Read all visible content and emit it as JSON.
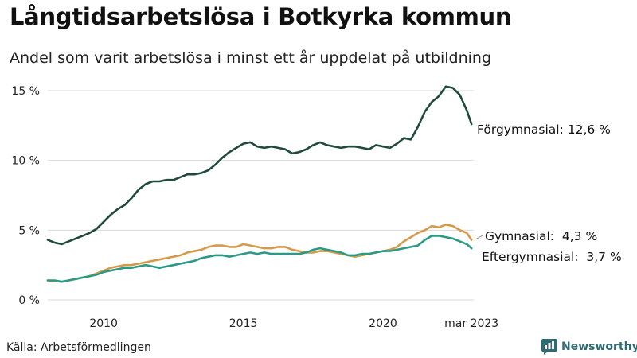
{
  "title": "Långtidsarbetslösa i Botkyrka kommun",
  "subtitle": "Andel som varit arbetslösa i minst ett år uppdelat på utbildning",
  "source": "Källa: Arbetsförmedlingen",
  "brand": "Newsworthy",
  "colors": {
    "forgymnasial": "#1f4a3d",
    "gymnasial": "#d49a4a",
    "eftergymnasial": "#2a9a86",
    "brand": "#2f6b73"
  },
  "chart_data": {
    "type": "line",
    "title": "Långtidsarbetslösa i Botkyrka kommun",
    "subtitle": "Andel som varit arbetslösa i minst ett år uppdelat på utbildning",
    "xlabel": "",
    "ylabel": "",
    "xlim": [
      2008.0,
      2023.25
    ],
    "ylim": [
      0,
      15.8
    ],
    "yticks": [
      0,
      5,
      10,
      15
    ],
    "ytick_labels": [
      "0 %",
      "5 %",
      "10 %",
      "15 %"
    ],
    "xticks": [
      2010,
      2015,
      2020,
      2023.17
    ],
    "xtick_labels": [
      "2010",
      "2015",
      "2020",
      "mar 2023"
    ],
    "grid": "horizontal",
    "legend": "none (direct labels at line ends)",
    "series": [
      {
        "name": "Förgymnasial",
        "end_label": "Förgymnasial: 12,6 %",
        "points": [
          [
            2008.0,
            4.3
          ],
          [
            2008.25,
            4.1
          ],
          [
            2008.5,
            4.0
          ],
          [
            2008.75,
            4.2
          ],
          [
            2009.0,
            4.4
          ],
          [
            2009.25,
            4.6
          ],
          [
            2009.5,
            4.8
          ],
          [
            2009.75,
            5.1
          ],
          [
            2010.0,
            5.6
          ],
          [
            2010.25,
            6.1
          ],
          [
            2010.5,
            6.5
          ],
          [
            2010.75,
            6.8
          ],
          [
            2011.0,
            7.3
          ],
          [
            2011.25,
            7.9
          ],
          [
            2011.5,
            8.3
          ],
          [
            2011.75,
            8.5
          ],
          [
            2012.0,
            8.5
          ],
          [
            2012.25,
            8.6
          ],
          [
            2012.5,
            8.6
          ],
          [
            2012.75,
            8.8
          ],
          [
            2013.0,
            9.0
          ],
          [
            2013.25,
            9.0
          ],
          [
            2013.5,
            9.1
          ],
          [
            2013.75,
            9.3
          ],
          [
            2014.0,
            9.7
          ],
          [
            2014.25,
            10.2
          ],
          [
            2014.5,
            10.6
          ],
          [
            2014.75,
            10.9
          ],
          [
            2015.0,
            11.2
          ],
          [
            2015.25,
            11.3
          ],
          [
            2015.5,
            11.0
          ],
          [
            2015.75,
            10.9
          ],
          [
            2016.0,
            11.0
          ],
          [
            2016.25,
            10.9
          ],
          [
            2016.5,
            10.8
          ],
          [
            2016.75,
            10.5
          ],
          [
            2017.0,
            10.6
          ],
          [
            2017.25,
            10.8
          ],
          [
            2017.5,
            11.1
          ],
          [
            2017.75,
            11.3
          ],
          [
            2018.0,
            11.1
          ],
          [
            2018.25,
            11.0
          ],
          [
            2018.5,
            10.9
          ],
          [
            2018.75,
            11.0
          ],
          [
            2019.0,
            11.0
          ],
          [
            2019.25,
            10.9
          ],
          [
            2019.5,
            10.8
          ],
          [
            2019.75,
            11.1
          ],
          [
            2020.0,
            11.0
          ],
          [
            2020.25,
            10.9
          ],
          [
            2020.5,
            11.2
          ],
          [
            2020.75,
            11.6
          ],
          [
            2021.0,
            11.5
          ],
          [
            2021.25,
            12.4
          ],
          [
            2021.5,
            13.5
          ],
          [
            2021.75,
            14.2
          ],
          [
            2022.0,
            14.6
          ],
          [
            2022.25,
            15.3
          ],
          [
            2022.5,
            15.2
          ],
          [
            2022.75,
            14.7
          ],
          [
            2023.0,
            13.6
          ],
          [
            2023.17,
            12.6
          ]
        ]
      },
      {
        "name": "Gymnasial",
        "end_label": "Gymnasial:  4,3 %",
        "points": [
          [
            2008.0,
            1.4
          ],
          [
            2008.25,
            1.35
          ],
          [
            2008.5,
            1.3
          ],
          [
            2008.75,
            1.4
          ],
          [
            2009.0,
            1.5
          ],
          [
            2009.25,
            1.6
          ],
          [
            2009.5,
            1.7
          ],
          [
            2009.75,
            1.9
          ],
          [
            2010.0,
            2.1
          ],
          [
            2010.25,
            2.3
          ],
          [
            2010.5,
            2.4
          ],
          [
            2010.75,
            2.5
          ],
          [
            2011.0,
            2.5
          ],
          [
            2011.25,
            2.6
          ],
          [
            2011.5,
            2.7
          ],
          [
            2011.75,
            2.8
          ],
          [
            2012.0,
            2.9
          ],
          [
            2012.25,
            3.0
          ],
          [
            2012.5,
            3.1
          ],
          [
            2012.75,
            3.2
          ],
          [
            2013.0,
            3.4
          ],
          [
            2013.25,
            3.5
          ],
          [
            2013.5,
            3.6
          ],
          [
            2013.75,
            3.8
          ],
          [
            2014.0,
            3.9
          ],
          [
            2014.25,
            3.9
          ],
          [
            2014.5,
            3.8
          ],
          [
            2014.75,
            3.8
          ],
          [
            2015.0,
            4.0
          ],
          [
            2015.25,
            3.9
          ],
          [
            2015.5,
            3.8
          ],
          [
            2015.75,
            3.7
          ],
          [
            2016.0,
            3.7
          ],
          [
            2016.25,
            3.8
          ],
          [
            2016.5,
            3.8
          ],
          [
            2016.75,
            3.6
          ],
          [
            2017.0,
            3.5
          ],
          [
            2017.25,
            3.4
          ],
          [
            2017.5,
            3.4
          ],
          [
            2017.75,
            3.5
          ],
          [
            2018.0,
            3.5
          ],
          [
            2018.25,
            3.4
          ],
          [
            2018.5,
            3.3
          ],
          [
            2018.75,
            3.2
          ],
          [
            2019.0,
            3.1
          ],
          [
            2019.25,
            3.2
          ],
          [
            2019.5,
            3.3
          ],
          [
            2019.75,
            3.4
          ],
          [
            2020.0,
            3.5
          ],
          [
            2020.25,
            3.6
          ],
          [
            2020.5,
            3.8
          ],
          [
            2020.75,
            4.2
          ],
          [
            2021.0,
            4.5
          ],
          [
            2021.25,
            4.8
          ],
          [
            2021.5,
            5.0
          ],
          [
            2021.75,
            5.3
          ],
          [
            2022.0,
            5.2
          ],
          [
            2022.25,
            5.4
          ],
          [
            2022.5,
            5.3
          ],
          [
            2022.75,
            5.0
          ],
          [
            2023.0,
            4.8
          ],
          [
            2023.17,
            4.3
          ]
        ]
      },
      {
        "name": "Eftergymnasial",
        "end_label": "Eftergymnasial:  3,7 %",
        "points": [
          [
            2008.0,
            1.4
          ],
          [
            2008.25,
            1.4
          ],
          [
            2008.5,
            1.3
          ],
          [
            2008.75,
            1.4
          ],
          [
            2009.0,
            1.5
          ],
          [
            2009.25,
            1.6
          ],
          [
            2009.5,
            1.7
          ],
          [
            2009.75,
            1.8
          ],
          [
            2010.0,
            2.0
          ],
          [
            2010.25,
            2.1
          ],
          [
            2010.5,
            2.2
          ],
          [
            2010.75,
            2.3
          ],
          [
            2011.0,
            2.3
          ],
          [
            2011.25,
            2.4
          ],
          [
            2011.5,
            2.5
          ],
          [
            2011.75,
            2.4
          ],
          [
            2012.0,
            2.3
          ],
          [
            2012.25,
            2.4
          ],
          [
            2012.5,
            2.5
          ],
          [
            2012.75,
            2.6
          ],
          [
            2013.0,
            2.7
          ],
          [
            2013.25,
            2.8
          ],
          [
            2013.5,
            3.0
          ],
          [
            2013.75,
            3.1
          ],
          [
            2014.0,
            3.2
          ],
          [
            2014.25,
            3.2
          ],
          [
            2014.5,
            3.1
          ],
          [
            2014.75,
            3.2
          ],
          [
            2015.0,
            3.3
          ],
          [
            2015.25,
            3.4
          ],
          [
            2015.5,
            3.3
          ],
          [
            2015.75,
            3.4
          ],
          [
            2016.0,
            3.3
          ],
          [
            2016.25,
            3.3
          ],
          [
            2016.5,
            3.3
          ],
          [
            2016.75,
            3.3
          ],
          [
            2017.0,
            3.3
          ],
          [
            2017.25,
            3.4
          ],
          [
            2017.5,
            3.6
          ],
          [
            2017.75,
            3.7
          ],
          [
            2018.0,
            3.6
          ],
          [
            2018.25,
            3.5
          ],
          [
            2018.5,
            3.4
          ],
          [
            2018.75,
            3.2
          ],
          [
            2019.0,
            3.2
          ],
          [
            2019.25,
            3.3
          ],
          [
            2019.5,
            3.3
          ],
          [
            2019.75,
            3.4
          ],
          [
            2020.0,
            3.5
          ],
          [
            2020.25,
            3.5
          ],
          [
            2020.5,
            3.6
          ],
          [
            2020.75,
            3.7
          ],
          [
            2021.0,
            3.8
          ],
          [
            2021.25,
            3.9
          ],
          [
            2021.5,
            4.3
          ],
          [
            2021.75,
            4.6
          ],
          [
            2022.0,
            4.6
          ],
          [
            2022.25,
            4.5
          ],
          [
            2022.5,
            4.4
          ],
          [
            2022.75,
            4.2
          ],
          [
            2023.0,
            4.0
          ],
          [
            2023.17,
            3.7
          ]
        ]
      }
    ]
  }
}
